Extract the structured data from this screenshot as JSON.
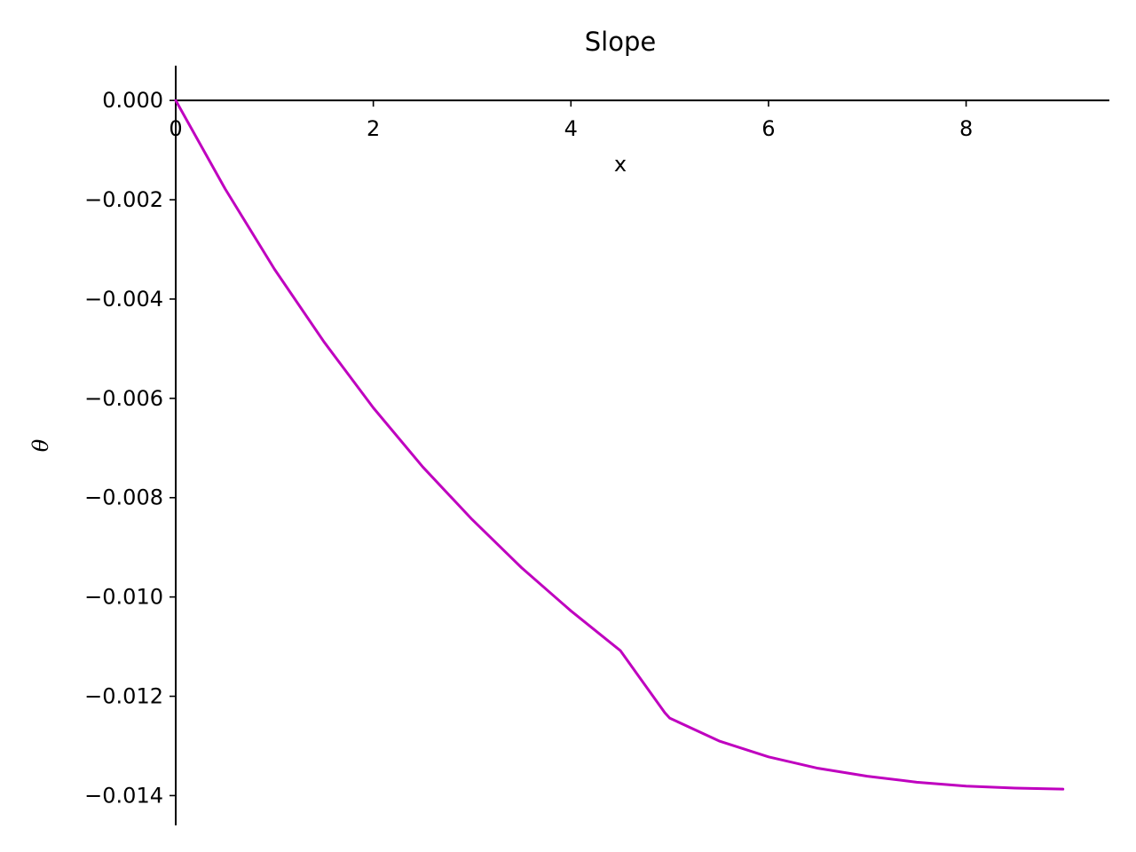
{
  "chart_data": {
    "type": "line",
    "title": "Slope",
    "xlabel": "x",
    "ylabel": "θ",
    "xlim": [
      0,
      9.45
    ],
    "ylim": [
      -0.0146,
      0.0007
    ],
    "x_ticks": [
      0,
      2,
      4,
      6,
      8
    ],
    "x_tick_labels": [
      "0",
      "2",
      "4",
      "6",
      "8"
    ],
    "y_ticks": [
      0.0,
      -0.002,
      -0.004,
      -0.006,
      -0.008,
      -0.01,
      -0.012,
      -0.014
    ],
    "y_tick_labels": [
      "0.000",
      "−0.002",
      "−0.004",
      "−0.006",
      "−0.008",
      "−0.010",
      "−0.012",
      "−0.014"
    ],
    "grid": false,
    "spines": "centered-at-zero",
    "series": [
      {
        "color": "#bf00bf",
        "x": [
          0.0,
          0.5,
          1.0,
          1.5,
          2.0,
          2.5,
          3.0,
          3.5,
          4.0,
          4.5,
          4.95,
          5.0,
          5.5,
          6.0,
          6.5,
          7.0,
          7.5,
          8.0,
          8.5,
          8.98
        ],
        "y": [
          0.0,
          -0.00178,
          -0.0034,
          -0.00486,
          -0.00619,
          -0.00738,
          -0.00844,
          -0.00941,
          -0.01028,
          -0.01108,
          -0.01233,
          -0.01244,
          -0.0129,
          -0.01322,
          -0.01345,
          -0.01361,
          -0.01373,
          -0.01381,
          -0.01385,
          -0.01387
        ]
      }
    ]
  }
}
